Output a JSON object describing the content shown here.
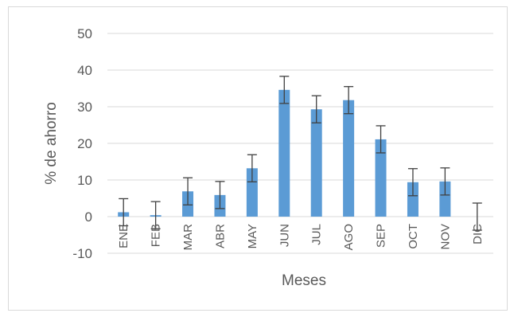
{
  "chart_data": {
    "type": "bar",
    "title": "",
    "xlabel": "Meses",
    "ylabel": "% de ahorro",
    "ylim": [
      -10,
      50
    ],
    "yticks": [
      -10,
      0,
      10,
      20,
      30,
      40,
      50
    ],
    "grid": true,
    "legend": "none",
    "bar_color": "#5b9bd5",
    "error_color": "#404040",
    "categories": [
      "ENE",
      "FEB",
      "MAR",
      "ABR",
      "MAY",
      "JUN",
      "JUL",
      "AGO",
      "SEP",
      "OCT",
      "NOV",
      "DIC"
    ],
    "values": [
      1.2,
      0.4,
      6.9,
      5.9,
      13.2,
      34.6,
      29.3,
      31.8,
      21.1,
      9.4,
      9.6,
      0.0
    ],
    "error": [
      3.7,
      3.7,
      3.7,
      3.7,
      3.7,
      3.7,
      3.7,
      3.7,
      3.7,
      3.7,
      3.7,
      3.7
    ]
  }
}
